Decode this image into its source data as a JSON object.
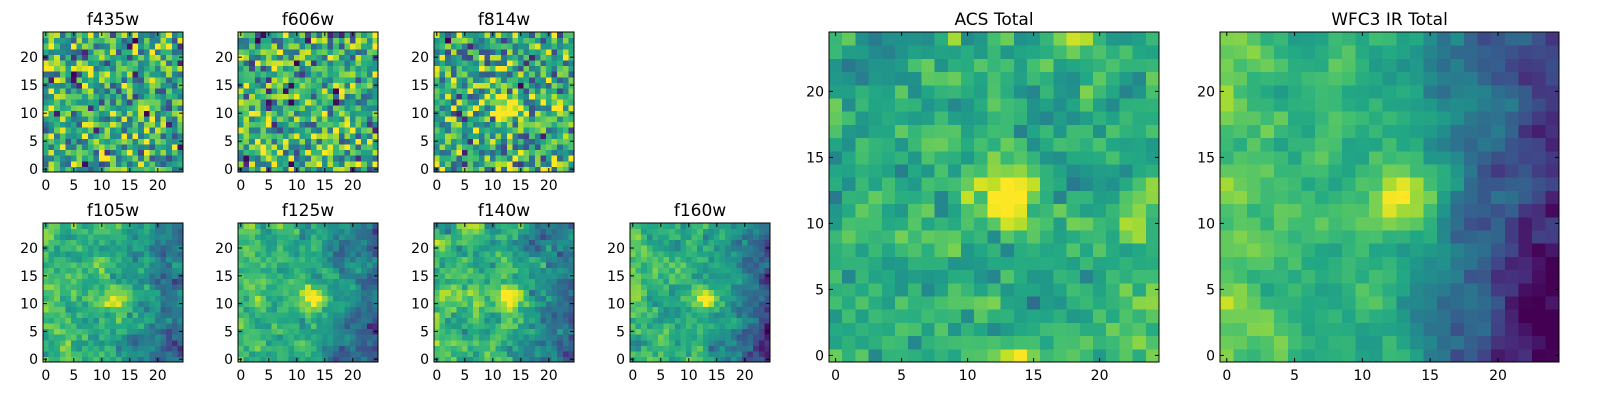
{
  "chart_data": {
    "type": "heatmap",
    "colormap": "viridis",
    "grid": false,
    "legend": "none",
    "panels": [
      {
        "title": "f435w",
        "xlim": [
          0,
          25
        ],
        "ylim": [
          0,
          25
        ],
        "xticks": [
          "0",
          "5",
          "10",
          "15",
          "20"
        ],
        "yticks": [
          "0",
          "5",
          "10",
          "15",
          "20"
        ],
        "hotspot": null,
        "bg_trend": 0,
        "noise": 0.9,
        "seed": 11
      },
      {
        "title": "f606w",
        "xlim": [
          0,
          25
        ],
        "ylim": [
          0,
          25
        ],
        "xticks": [
          "0",
          "5",
          "10",
          "15",
          "20"
        ],
        "yticks": [
          "0",
          "5",
          "10",
          "15",
          "20"
        ],
        "hotspot": null,
        "bg_trend": 0,
        "noise": 0.9,
        "seed": 23
      },
      {
        "title": "f814w",
        "xlim": [
          0,
          25
        ],
        "ylim": [
          0,
          25
        ],
        "xticks": [
          "0",
          "5",
          "10",
          "15",
          "20"
        ],
        "yticks": [
          "0",
          "5",
          "10",
          "15",
          "20"
        ],
        "hotspot": [
          13,
          11
        ],
        "bg_trend": 0,
        "noise": 0.85,
        "seed": 37
      },
      {
        "title": "f105w",
        "xlim": [
          0,
          25
        ],
        "ylim": [
          0,
          25
        ],
        "xticks": [
          "0",
          "5",
          "10",
          "15",
          "20"
        ],
        "yticks": [
          "0",
          "5",
          "10",
          "15",
          "20"
        ],
        "hotspot": [
          13,
          11
        ],
        "bg_trend": 0.25,
        "noise": 0.55,
        "seed": 41
      },
      {
        "title": "f125w",
        "xlim": [
          0,
          25
        ],
        "ylim": [
          0,
          25
        ],
        "xticks": [
          "0",
          "5",
          "10",
          "15",
          "20"
        ],
        "yticks": [
          "0",
          "5",
          "10",
          "15",
          "20"
        ],
        "hotspot": [
          13,
          11
        ],
        "bg_trend": 0.3,
        "noise": 0.5,
        "seed": 53
      },
      {
        "title": "f140w",
        "xlim": [
          0,
          25
        ],
        "ylim": [
          0,
          25
        ],
        "xticks": [
          "0",
          "5",
          "10",
          "15",
          "20"
        ],
        "yticks": [
          "0",
          "5",
          "10",
          "15",
          "20"
        ],
        "hotspot": [
          13,
          11
        ],
        "bg_trend": 0.3,
        "noise": 0.55,
        "seed": 67
      },
      {
        "title": "f160w",
        "xlim": [
          0,
          25
        ],
        "ylim": [
          0,
          25
        ],
        "xticks": [
          "0",
          "5",
          "10",
          "15",
          "20"
        ],
        "yticks": [
          "0",
          "5",
          "10",
          "15",
          "20"
        ],
        "hotspot": [
          13,
          11
        ],
        "bg_trend": 0.35,
        "noise": 0.5,
        "seed": 79
      },
      {
        "title": "ACS Total",
        "xlim": [
          0,
          25
        ],
        "ylim": [
          0,
          25
        ],
        "xticks": [
          "0",
          "5",
          "10",
          "15",
          "20"
        ],
        "yticks": [
          "0",
          "5",
          "10",
          "15",
          "20"
        ],
        "hotspot": [
          13,
          12
        ],
        "bg_trend": 0,
        "noise": 0.6,
        "seed": 97
      },
      {
        "title": "WFC3 IR Total",
        "xlim": [
          0,
          25
        ],
        "ylim": [
          0,
          25
        ],
        "xticks": [
          "0",
          "5",
          "10",
          "15",
          "20"
        ],
        "yticks": [
          "0",
          "5",
          "10",
          "15",
          "20"
        ],
        "hotspot": [
          13,
          12
        ],
        "bg_trend": 0.55,
        "noise": 0.3,
        "seed": 131
      }
    ]
  }
}
